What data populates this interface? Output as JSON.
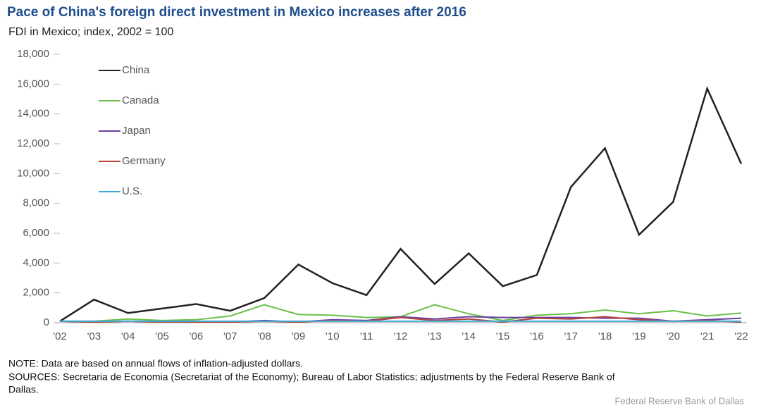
{
  "chart_data": {
    "type": "line",
    "title": "Pace of China's foreign direct investment in Mexico increases after 2016",
    "subtitle": "FDI in Mexico; index, 2002 = 100",
    "categories": [
      "'02",
      "'03",
      "'04",
      "'05",
      "'06",
      "'07",
      "'08",
      "'09",
      "'10",
      "'11",
      "'12",
      "'13",
      "'14",
      "'15",
      "'16",
      "'17",
      "'18",
      "'19",
      "'20",
      "'21",
      "'22"
    ],
    "series": [
      {
        "name": "China",
        "color": "#222222",
        "values": [
          100,
          1550,
          650,
          950,
          1250,
          800,
          1650,
          3900,
          2650,
          1850,
          4950,
          2600,
          4650,
          2450,
          3200,
          9100,
          11700,
          5900,
          8100,
          15700,
          10650
        ]
      },
      {
        "name": "Canada",
        "color": "#6cc04a",
        "values": [
          100,
          100,
          250,
          150,
          200,
          450,
          1200,
          550,
          500,
          350,
          400,
          1200,
          600,
          150,
          500,
          600,
          850,
          600,
          800,
          450,
          650
        ]
      },
      {
        "name": "Japan",
        "color": "#6b3fa0",
        "values": [
          100,
          50,
          100,
          50,
          50,
          50,
          150,
          50,
          200,
          150,
          400,
          250,
          400,
          350,
          350,
          350,
          300,
          300,
          100,
          200,
          300
        ]
      },
      {
        "name": "Germany",
        "color": "#b5443a",
        "values": [
          100,
          50,
          100,
          50,
          50,
          50,
          100,
          50,
          150,
          100,
          350,
          150,
          250,
          50,
          300,
          250,
          400,
          200,
          100,
          150,
          50
        ]
      },
      {
        "name": "U.S.",
        "color": "#3fa9d6",
        "values": [
          100,
          100,
          100,
          100,
          100,
          100,
          100,
          100,
          100,
          100,
          100,
          100,
          100,
          100,
          100,
          100,
          100,
          100,
          100,
          100,
          100
        ]
      }
    ],
    "ylim": [
      0,
      18000
    ],
    "yticks": [
      0,
      {
        "value": 2000,
        "label": "2,000"
      },
      {
        "value": 4000,
        "label": "4,000"
      },
      {
        "value": 6000,
        "label": "6,000"
      },
      {
        "value": 8000,
        "label": "8,000"
      },
      {
        "value": 10000,
        "label": "10,000"
      },
      {
        "value": 12000,
        "label": "12,000"
      },
      {
        "value": 14000,
        "label": "14,000"
      },
      {
        "value": 16000,
        "label": "16,000"
      },
      {
        "value": 18000,
        "label": "18,000"
      }
    ],
    "legend": "upper left",
    "note": "NOTE: Data are based on annual flows of inflation-adjusted dollars.",
    "sources": "SOURCES: Secretaria de Economia (Secretariat of the Economy); Bureau of Labor Statistics; adjustments by the Federal Reserve Bank of",
    "sources_cont": "Dallas.",
    "credit": "Federal Reserve Bank of Dallas"
  }
}
